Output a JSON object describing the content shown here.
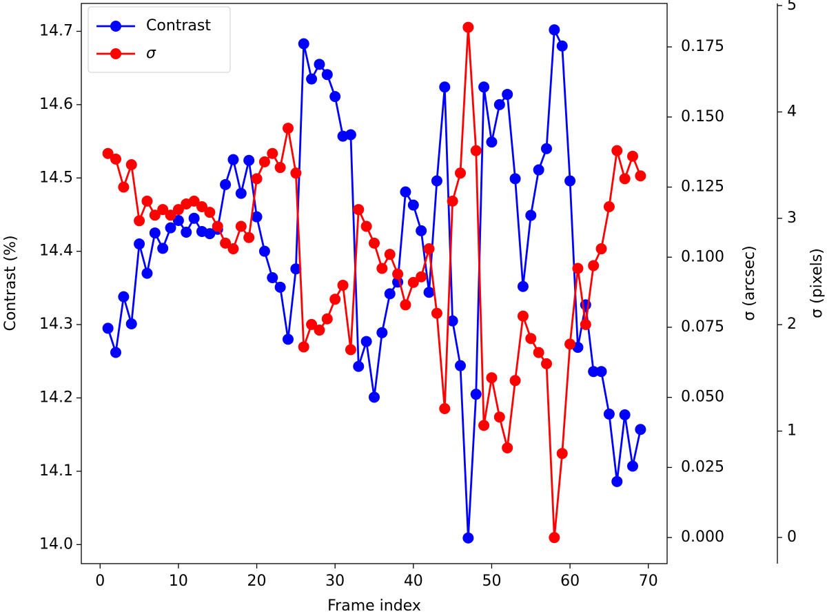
{
  "chart_data": {
    "type": "line",
    "xlabel": "Frame index",
    "ylabel": "Contrast (%)",
    "y2label": "σ (arcsec)",
    "y3label": "σ (pixels)",
    "x": [
      1,
      2,
      3,
      4,
      5,
      6,
      7,
      8,
      9,
      10,
      11,
      12,
      13,
      14,
      15,
      16,
      17,
      18,
      19,
      20,
      21,
      22,
      23,
      24,
      25,
      26,
      27,
      28,
      29,
      30,
      31,
      32,
      33,
      34,
      35,
      36,
      37,
      38,
      39,
      40,
      41,
      42,
      43,
      44,
      45,
      46,
      47,
      48,
      49,
      50,
      51,
      52,
      53,
      54,
      55,
      56,
      57,
      58,
      59,
      60,
      61,
      62,
      63,
      64,
      65,
      66,
      67,
      68,
      69
    ],
    "series": [
      {
        "name": "Contrast",
        "color": "#0000ff",
        "values": [
          14.295,
          14.262,
          14.338,
          14.301,
          14.41,
          14.37,
          14.425,
          14.404,
          14.432,
          14.442,
          14.426,
          14.445,
          14.427,
          14.424,
          14.43,
          14.491,
          14.525,
          14.479,
          14.524,
          14.447,
          14.4,
          14.364,
          14.351,
          14.28,
          14.376,
          14.683,
          14.635,
          14.655,
          14.641,
          14.611,
          14.557,
          14.559,
          14.243,
          14.277,
          14.201,
          14.289,
          14.342,
          14.358,
          14.481,
          14.463,
          14.428,
          14.344,
          14.496,
          14.624,
          14.305,
          14.244,
          14.009,
          14.205,
          14.624,
          14.549,
          14.6,
          14.614,
          14.499,
          14.352,
          14.449,
          14.511,
          14.54,
          14.702,
          14.68,
          14.496,
          14.269,
          14.327,
          14.236,
          14.236,
          14.178,
          14.086,
          14.177,
          14.107,
          14.157
        ]
      },
      {
        "name": "σ",
        "color": "#ff0000",
        "axis": "y2",
        "values": [
          0.137,
          0.135,
          0.125,
          0.133,
          0.113,
          0.12,
          0.115,
          0.117,
          0.115,
          0.117,
          0.119,
          0.12,
          0.118,
          0.116,
          0.111,
          0.105,
          0.103,
          0.111,
          0.107,
          0.128,
          0.134,
          0.137,
          0.132,
          0.146,
          0.13,
          0.068,
          0.076,
          0.074,
          0.078,
          0.085,
          0.09,
          0.067,
          0.117,
          0.111,
          0.105,
          0.096,
          0.101,
          0.094,
          0.083,
          0.091,
          0.093,
          0.103,
          0.08,
          0.046,
          0.12,
          0.13,
          0.182,
          0.138,
          0.04,
          0.057,
          0.043,
          0.032,
          0.056,
          0.079,
          0.071,
          0.066,
          0.062,
          0.0,
          0.03,
          0.069,
          0.096,
          0.076,
          0.097,
          0.103,
          0.118,
          0.138,
          0.128,
          0.136,
          0.129
        ]
      }
    ],
    "xlim": [
      -2.4,
      72.4
    ],
    "xticks": [
      0,
      10,
      20,
      30,
      40,
      50,
      60,
      70
    ],
    "ylim": [
      13.974,
      14.738
    ],
    "yticks": [
      {
        "value": 14,
        "label": "14.0"
      },
      14.1,
      14.2,
      14.3,
      14.4,
      14.5,
      14.6,
      14.7
    ],
    "y2lim": [
      -0.0093,
      0.1905
    ],
    "y2ticks": [
      {
        "value": 0,
        "label": "0.000"
      },
      0.025,
      {
        "value": 0.05,
        "label": "0.050"
      },
      0.075,
      {
        "value": 0.1,
        "label": "0.100"
      },
      0.125,
      {
        "value": 0.15,
        "label": "0.150"
      },
      0.175
    ],
    "y3lim": [
      -0.246,
      5.02
    ],
    "y3ticks": [
      0,
      1,
      2,
      3,
      4,
      5
    ],
    "legend": "upper left"
  }
}
